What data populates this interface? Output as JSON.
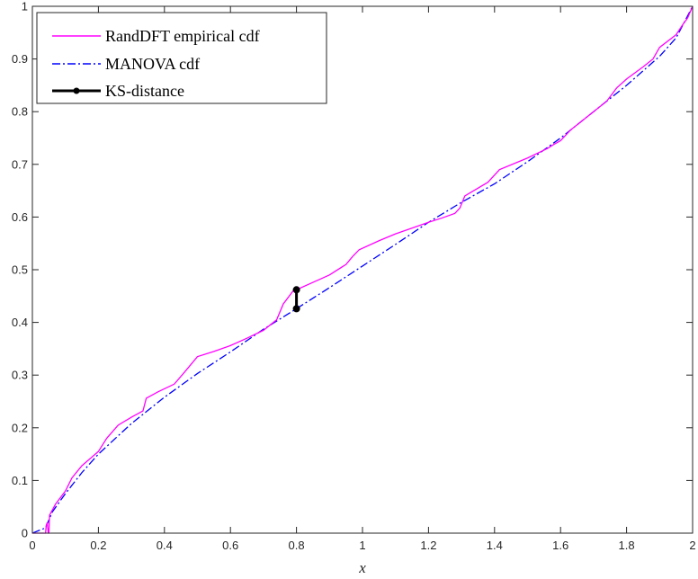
{
  "chart_data": {
    "type": "line",
    "title": "",
    "xlabel": "x",
    "ylabel": "",
    "xlim": [
      0,
      2
    ],
    "ylim": [
      0,
      1
    ],
    "xticks": [
      "0",
      "0.2",
      "0.4",
      "0.6",
      "0.8",
      "1",
      "1.2",
      "1.4",
      "1.6",
      "1.8",
      "2"
    ],
    "yticks": [
      "0",
      "0.1",
      "0.2",
      "0.3",
      "0.4",
      "0.5",
      "0.6",
      "0.7",
      "0.8",
      "0.9",
      "1"
    ],
    "grid": false,
    "legend_position": "top-left",
    "series": [
      {
        "name": "RandDFT empirical cdf",
        "color": "#ff00ff",
        "style": "solid",
        "points": [
          [
            0.0,
            0.0
          ],
          [
            0.04,
            0.0
          ],
          [
            0.042,
            0.015
          ],
          [
            0.045,
            0.02
          ],
          [
            0.048,
            0.0
          ],
          [
            0.05,
            0.0
          ],
          [
            0.052,
            0.034
          ],
          [
            0.07,
            0.055
          ],
          [
            0.1,
            0.08
          ],
          [
            0.12,
            0.105
          ],
          [
            0.15,
            0.128
          ],
          [
            0.2,
            0.155
          ],
          [
            0.225,
            0.18
          ],
          [
            0.26,
            0.205
          ],
          [
            0.3,
            0.22
          ],
          [
            0.335,
            0.232
          ],
          [
            0.345,
            0.256
          ],
          [
            0.38,
            0.268
          ],
          [
            0.43,
            0.283
          ],
          [
            0.46,
            0.305
          ],
          [
            0.5,
            0.335
          ],
          [
            0.55,
            0.345
          ],
          [
            0.6,
            0.356
          ],
          [
            0.65,
            0.37
          ],
          [
            0.7,
            0.385
          ],
          [
            0.74,
            0.405
          ],
          [
            0.76,
            0.435
          ],
          [
            0.79,
            0.46
          ],
          [
            0.8,
            0.462
          ],
          [
            0.85,
            0.476
          ],
          [
            0.9,
            0.49
          ],
          [
            0.95,
            0.51
          ],
          [
            0.97,
            0.525
          ],
          [
            0.99,
            0.538
          ],
          [
            1.05,
            0.555
          ],
          [
            1.1,
            0.568
          ],
          [
            1.2,
            0.59
          ],
          [
            1.24,
            0.598
          ],
          [
            1.28,
            0.607
          ],
          [
            1.295,
            0.617
          ],
          [
            1.31,
            0.64
          ],
          [
            1.38,
            0.666
          ],
          [
            1.415,
            0.69
          ],
          [
            1.5,
            0.712
          ],
          [
            1.56,
            0.73
          ],
          [
            1.58,
            0.738
          ],
          [
            1.6,
            0.745
          ],
          [
            1.63,
            0.765
          ],
          [
            1.7,
            0.8
          ],
          [
            1.74,
            0.82
          ],
          [
            1.77,
            0.845
          ],
          [
            1.8,
            0.862
          ],
          [
            1.85,
            0.885
          ],
          [
            1.88,
            0.9
          ],
          [
            1.9,
            0.922
          ],
          [
            1.95,
            0.946
          ],
          [
            1.97,
            0.965
          ],
          [
            1.985,
            0.978
          ],
          [
            2.0,
            1.0
          ]
        ]
      },
      {
        "name": "MANOVA cdf",
        "color": "#0000ff",
        "style": "dashdot",
        "points": [
          [
            0.0,
            0.0
          ],
          [
            0.04,
            0.01
          ],
          [
            0.06,
            0.04
          ],
          [
            0.1,
            0.075
          ],
          [
            0.15,
            0.115
          ],
          [
            0.2,
            0.15
          ],
          [
            0.3,
            0.208
          ],
          [
            0.4,
            0.258
          ],
          [
            0.5,
            0.303
          ],
          [
            0.6,
            0.344
          ],
          [
            0.7,
            0.387
          ],
          [
            0.8,
            0.426
          ],
          [
            0.9,
            0.466
          ],
          [
            1.0,
            0.507
          ],
          [
            1.1,
            0.548
          ],
          [
            1.2,
            0.59
          ],
          [
            1.3,
            0.628
          ],
          [
            1.4,
            0.663
          ],
          [
            1.5,
            0.705
          ],
          [
            1.6,
            0.75
          ],
          [
            1.7,
            0.8
          ],
          [
            1.8,
            0.85
          ],
          [
            1.9,
            0.905
          ],
          [
            1.95,
            0.94
          ],
          [
            2.0,
            1.0
          ]
        ]
      },
      {
        "name": "KS-distance",
        "color": "#000000",
        "style": "solid-marker",
        "points": [
          [
            0.8,
            0.426
          ],
          [
            0.8,
            0.462
          ]
        ]
      }
    ]
  }
}
